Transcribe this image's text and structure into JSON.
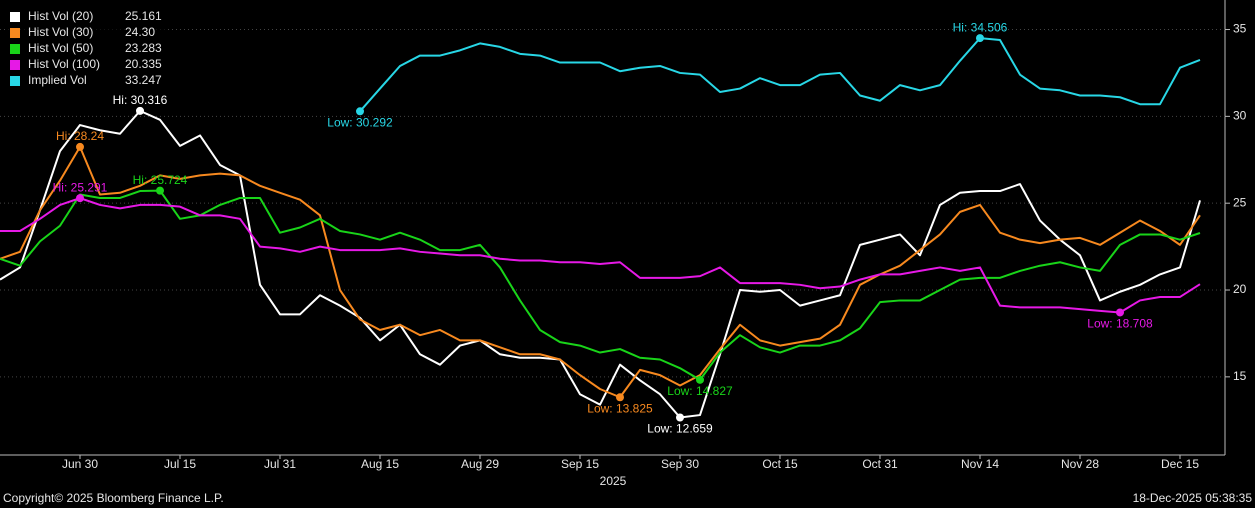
{
  "chart_data": {
    "type": "line",
    "categories": [
      null,
      null,
      null,
      null,
      "Jun 30",
      null,
      null,
      null,
      null,
      "Jul 15",
      null,
      null,
      null,
      null,
      "Jul 31",
      null,
      null,
      null,
      null,
      "Aug 15",
      null,
      null,
      null,
      null,
      "Aug 29",
      null,
      null,
      null,
      null,
      "Sep 15",
      null,
      null,
      null,
      null,
      "Sep 30",
      null,
      null,
      null,
      null,
      "Oct 15",
      null,
      null,
      null,
      null,
      "Oct 31",
      null,
      null,
      null,
      null,
      "Nov 14",
      null,
      null,
      null,
      null,
      "Nov 28",
      null,
      null,
      null,
      null,
      "Dec 15",
      null
    ],
    "xlabel": "2025",
    "ylim": [
      10.5,
      36.7
    ],
    "yticks": [
      15,
      20,
      25,
      30,
      35
    ],
    "grid": true,
    "legend": "top-left",
    "footer_left": "Copyright© 2025 Bloomberg Finance L.P.",
    "footer_right": "18-Dec-2025 05:38:35",
    "series": [
      {
        "name": "Hist Vol (20)",
        "color": "#ffffff",
        "last": 25.161,
        "hi": {
          "value": 30.316,
          "label": "Hi: 30.316"
        },
        "low": {
          "value": 12.659,
          "label": "Low: 12.659"
        },
        "values": [
          20.6,
          21.3,
          24.6,
          28.0,
          29.5,
          29.2,
          29.0,
          30.316,
          29.8,
          28.3,
          28.9,
          27.2,
          26.6,
          20.3,
          18.6,
          18.6,
          19.7,
          19.1,
          18.4,
          17.1,
          18.0,
          16.3,
          15.7,
          16.8,
          17.1,
          16.3,
          16.1,
          16.1,
          16.0,
          14.0,
          13.4,
          15.7,
          14.8,
          14.0,
          12.659,
          12.8,
          16.3,
          20.0,
          19.9,
          20.0,
          19.1,
          19.4,
          19.7,
          22.6,
          22.9,
          23.2,
          22.0,
          24.9,
          25.6,
          25.7,
          25.7,
          26.1,
          24.0,
          22.9,
          22.0,
          19.4,
          19.9,
          20.3,
          20.9,
          21.3,
          25.161
        ]
      },
      {
        "name": "Hist Vol (30)",
        "color": "#f7891f",
        "last": {
          "value": 24.3,
          "label": "24.30"
        },
        "hi": {
          "value": 28.24,
          "label": "Hi: 28.24"
        },
        "low": {
          "value": 13.825,
          "label": "Low: 13.825"
        },
        "values": [
          21.8,
          22.2,
          24.6,
          26.3,
          28.24,
          25.5,
          25.6,
          26.0,
          26.6,
          26.4,
          26.6,
          26.7,
          26.6,
          26.0,
          25.6,
          25.2,
          24.3,
          20.0,
          18.3,
          17.7,
          18.0,
          17.4,
          17.7,
          17.1,
          17.1,
          16.7,
          16.3,
          16.3,
          16.0,
          15.1,
          14.3,
          13.825,
          15.4,
          15.1,
          14.5,
          15.1,
          16.6,
          18.0,
          17.1,
          16.8,
          17.0,
          17.2,
          18.0,
          20.3,
          20.9,
          21.4,
          22.3,
          23.2,
          24.5,
          24.9,
          23.3,
          22.9,
          22.7,
          22.9,
          23.0,
          22.6,
          23.3,
          24.0,
          23.4,
          22.6,
          24.3
        ]
      },
      {
        "name": "Hist Vol (50)",
        "color": "#19d419",
        "last": 23.283,
        "hi": {
          "value": 25.724,
          "label": "Hi: 25.724"
        },
        "low": {
          "value": 14.827,
          "label": "Low: 14.827"
        },
        "values": [
          21.8,
          21.4,
          22.8,
          23.7,
          25.5,
          25.3,
          25.3,
          25.7,
          25.724,
          24.1,
          24.3,
          24.9,
          25.3,
          25.3,
          23.3,
          23.6,
          24.1,
          23.4,
          23.2,
          22.9,
          23.3,
          22.9,
          22.3,
          22.3,
          22.6,
          21.3,
          19.4,
          17.7,
          17.0,
          16.8,
          16.4,
          16.6,
          16.1,
          16.0,
          15.5,
          14.827,
          16.4,
          17.4,
          16.7,
          16.4,
          16.8,
          16.8,
          17.1,
          17.8,
          19.3,
          19.4,
          19.4,
          20.0,
          20.6,
          20.7,
          20.7,
          21.1,
          21.4,
          21.6,
          21.3,
          21.1,
          22.6,
          23.2,
          23.2,
          22.9,
          23.283
        ]
      },
      {
        "name": "Hist Vol (100)",
        "color": "#e619e6",
        "last": 20.335,
        "hi": {
          "value": 25.291,
          "label": "Hi: 25.291"
        },
        "low": {
          "value": 18.708,
          "label": "Low: 18.708"
        },
        "values": [
          23.4,
          23.4,
          24.1,
          24.9,
          25.291,
          24.9,
          24.7,
          24.9,
          24.9,
          24.8,
          24.3,
          24.3,
          24.1,
          22.5,
          22.4,
          22.2,
          22.5,
          22.3,
          22.3,
          22.3,
          22.4,
          22.2,
          22.1,
          22.0,
          22.0,
          21.8,
          21.7,
          21.7,
          21.6,
          21.6,
          21.5,
          21.6,
          20.7,
          20.7,
          20.7,
          20.8,
          21.3,
          20.4,
          20.4,
          20.4,
          20.3,
          20.1,
          20.2,
          20.6,
          20.9,
          20.9,
          21.1,
          21.3,
          21.1,
          21.3,
          19.1,
          19.0,
          19.0,
          19.0,
          18.9,
          18.8,
          18.708,
          19.4,
          19.6,
          19.6,
          20.335
        ]
      },
      {
        "name": "Implied Vol",
        "color": "#28d7e6",
        "last": 33.247,
        "hi": {
          "value": 34.506,
          "label": "Hi: 34.506"
        },
        "low": {
          "value": 30.292,
          "label": "Low: 30.292"
        },
        "values": [
          null,
          null,
          null,
          null,
          null,
          null,
          null,
          null,
          null,
          null,
          null,
          null,
          null,
          null,
          null,
          null,
          null,
          null,
          30.292,
          31.6,
          32.9,
          33.5,
          33.5,
          33.8,
          34.2,
          34.0,
          33.6,
          33.5,
          33.1,
          33.1,
          33.1,
          32.6,
          32.8,
          32.9,
          32.5,
          32.4,
          31.4,
          31.6,
          32.2,
          31.8,
          31.8,
          32.4,
          32.5,
          31.2,
          30.9,
          31.8,
          31.5,
          31.8,
          33.2,
          34.506,
          34.4,
          32.4,
          31.6,
          31.5,
          31.2,
          31.2,
          31.1,
          30.7,
          30.7,
          32.8,
          33.247
        ]
      }
    ]
  }
}
